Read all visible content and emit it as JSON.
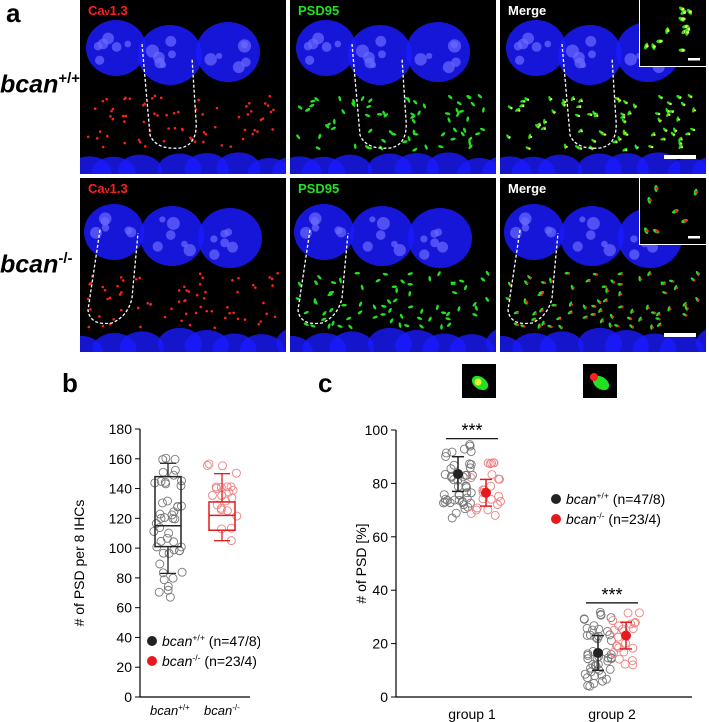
{
  "panel_labels": {
    "a": "a",
    "b": "b",
    "c": "c"
  },
  "rows": [
    {
      "genotype_base": "bcan",
      "genotype_sup": "+/+"
    },
    {
      "genotype_base": "bcan",
      "genotype_sup": "-/-"
    }
  ],
  "channels": [
    {
      "label_main": "Ca",
      "label_sub": "v",
      "label_tail": "1.3",
      "color": "#ff2020"
    },
    {
      "label_main": "PSD95",
      "label_sub": "",
      "label_tail": "",
      "color": "#22e022"
    },
    {
      "label_main": "Merge",
      "label_sub": "",
      "label_tail": "",
      "color": "#ffffff"
    }
  ],
  "colors": {
    "wt": "#222222",
    "ko": "#e41a1c",
    "nucleus": "#1a1aff",
    "cav": "#ff2020",
    "psd": "#22e022"
  },
  "chart_data": [
    {
      "type": "box",
      "ylabel": "# of PSD per 8 IHCs",
      "ylim": [
        0,
        180
      ],
      "yticks": [
        0,
        20,
        40,
        60,
        80,
        100,
        120,
        140,
        160,
        180
      ],
      "categories": [
        "bcan+/+",
        "bcan-/-"
      ],
      "category_labels": [
        {
          "base": "bcan",
          "sup": "+/+"
        },
        {
          "base": "bcan",
          "sup": "-/-"
        }
      ],
      "legend": [
        {
          "base": "bcan",
          "sup": "+/+",
          "n": "(n=47/8)"
        },
        {
          "base": "bcan",
          "sup": "-/-",
          "n": "(n=23/4)"
        }
      ],
      "series": [
        {
          "name": "bcan+/+",
          "q1": 101,
          "median": 115,
          "q3": 148,
          "whisker_low": 83,
          "whisker_high": 157,
          "mean": 122,
          "min": 67,
          "max": 163
        },
        {
          "name": "bcan-/-",
          "q1": 112,
          "median": 122,
          "q3": 131,
          "whisker_low": 105,
          "whisker_high": 150,
          "mean": 123,
          "min": 105,
          "max": 157
        }
      ]
    },
    {
      "type": "scatter",
      "ylabel": "# of PSD [%]",
      "ylim": [
        0,
        100
      ],
      "yticks": [
        0,
        20,
        40,
        60,
        80,
        100
      ],
      "categories": [
        "group 1",
        "group 2"
      ],
      "legend": [
        {
          "base": "bcan",
          "sup": "+/+",
          "n": "(n=47/8)"
        },
        {
          "base": "bcan",
          "sup": "-/-",
          "n": "(n=23/4)"
        }
      ],
      "significance": [
        "***",
        "***"
      ],
      "series": [
        {
          "name": "bcan+/+",
          "group1": {
            "mean": 83.5,
            "sd": 6.5,
            "min": 67,
            "max": 96
          },
          "group2": {
            "mean": 16.5,
            "sd": 6.5,
            "min": 4,
            "max": 33
          }
        },
        {
          "name": "bcan-/-",
          "group1": {
            "mean": 76.5,
            "sd": 5,
            "min": 68,
            "max": 88
          },
          "group2": {
            "mean": 23,
            "sd": 5,
            "min": 12,
            "max": 32
          }
        }
      ]
    }
  ]
}
